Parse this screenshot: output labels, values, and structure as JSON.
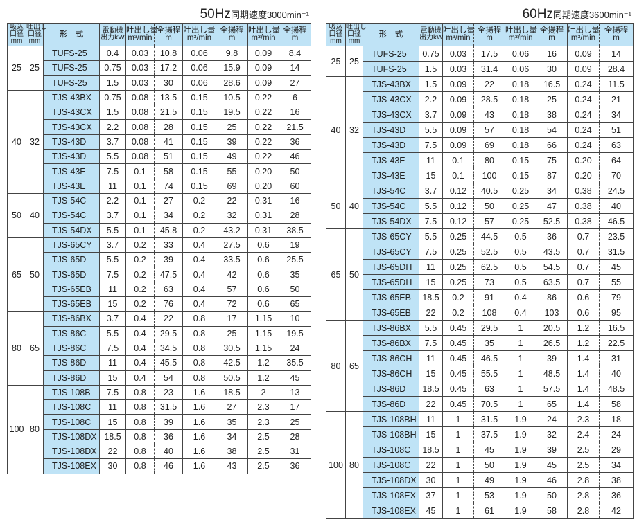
{
  "headers": {
    "suction": [
      "吸込",
      "口径",
      "mm"
    ],
    "discharge": [
      "吐出し",
      "口径",
      "mm"
    ],
    "model": "形　式",
    "motor": [
      "電動機",
      "出力kW"
    ],
    "flow": [
      "吐出し量",
      "m³/min"
    ],
    "head": [
      "全揚程",
      "m"
    ]
  },
  "tables": [
    {
      "hz": "50Hz",
      "speed": "同期速度3000min⁻¹",
      "groups": [
        {
          "suction": "25",
          "discharge": "25",
          "rows": [
            [
              "TUFS-25",
              "0.4",
              "0.03",
              "10.8",
              "0.06",
              "9.8",
              "0.09",
              "8.4"
            ],
            [
              "TUFS-25",
              "0.75",
              "0.03",
              "17.2",
              "0.06",
              "15.9",
              "0.09",
              "14"
            ],
            [
              "TUFS-25",
              "1.5",
              "0.03",
              "30",
              "0.06",
              "28.6",
              "0.09",
              "27"
            ]
          ]
        },
        {
          "suction": "40",
          "discharge": "32",
          "rows": [
            [
              "TJS-43BX",
              "0.75",
              "0.08",
              "13.5",
              "0.15",
              "10.5",
              "0.22",
              "6"
            ],
            [
              "TJS-43CX",
              "1.5",
              "0.08",
              "21.5",
              "0.15",
              "19.5",
              "0.22",
              "16"
            ],
            [
              "TJS-43CX",
              "2.2",
              "0.08",
              "28",
              "0.15",
              "25",
              "0.22",
              "21.5"
            ],
            [
              "TJS-43D",
              "3.7",
              "0.08",
              "41",
              "0.15",
              "39",
              "0.22",
              "36"
            ],
            [
              "TJS-43D",
              "5.5",
              "0.08",
              "51",
              "0.15",
              "49",
              "0.22",
              "46"
            ],
            [
              "TJS-43E",
              "7.5",
              "0.1",
              "58",
              "0.15",
              "55",
              "0.20",
              "50"
            ],
            [
              "TJS-43E",
              "11",
              "0.1",
              "74",
              "0.15",
              "69",
              "0.20",
              "60"
            ]
          ]
        },
        {
          "suction": "50",
          "discharge": "40",
          "rows": [
            [
              "TJS-54C",
              "2.2",
              "0.1",
              "27",
              "0.2",
              "22",
              "0.31",
              "16"
            ],
            [
              "TJS-54C",
              "3.7",
              "0.1",
              "34",
              "0.2",
              "32",
              "0.31",
              "28"
            ],
            [
              "TJS-54DX",
              "5.5",
              "0.1",
              "45.8",
              "0.2",
              "43.2",
              "0.31",
              "38.5"
            ]
          ]
        },
        {
          "suction": "65",
          "discharge": "50",
          "rows": [
            [
              "TJS-65CY",
              "3.7",
              "0.2",
              "33",
              "0.4",
              "27.5",
              "0.6",
              "19"
            ],
            [
              "TJS-65D",
              "5.5",
              "0.2",
              "39",
              "0.4",
              "33.5",
              "0.6",
              "25.5"
            ],
            [
              "TJS-65D",
              "7.5",
              "0.2",
              "47.5",
              "0.4",
              "42",
              "0.6",
              "35"
            ],
            [
              "TJS-65EB",
              "11",
              "0.2",
              "63",
              "0.4",
              "57",
              "0.6",
              "50"
            ],
            [
              "TJS-65EB",
              "15",
              "0.2",
              "76",
              "0.4",
              "72",
              "0.6",
              "65"
            ]
          ]
        },
        {
          "suction": "80",
          "discharge": "65",
          "rows": [
            [
              "TJS-86BX",
              "3.7",
              "0.4",
              "22",
              "0.8",
              "17",
              "1.15",
              "10"
            ],
            [
              "TJS-86C",
              "5.5",
              "0.4",
              "29.5",
              "0.8",
              "25",
              "1.15",
              "19.5"
            ],
            [
              "TJS-86C",
              "7.5",
              "0.4",
              "34.5",
              "0.8",
              "30.5",
              "1.15",
              "24"
            ],
            [
              "TJS-86D",
              "11",
              "0.4",
              "45.5",
              "0.8",
              "42.5",
              "1.2",
              "35.5"
            ],
            [
              "TJS-86D",
              "15",
              "0.4",
              "54",
              "0.8",
              "50.5",
              "1.2",
              "45"
            ]
          ]
        },
        {
          "suction": "100",
          "discharge": "80",
          "rows": [
            [
              "TJS-108B",
              "7.5",
              "0.8",
              "23",
              "1.6",
              "18.5",
              "2",
              "13"
            ],
            [
              "TJS-108C",
              "11",
              "0.8",
              "31.5",
              "1.6",
              "27",
              "2.3",
              "17"
            ],
            [
              "TJS-108C",
              "15",
              "0.8",
              "39",
              "1.6",
              "35",
              "2.3",
              "25"
            ],
            [
              "TJS-108DX",
              "18.5",
              "0.8",
              "36",
              "1.6",
              "34",
              "2.5",
              "28"
            ],
            [
              "TJS-108DX",
              "22",
              "0.8",
              "40",
              "1.6",
              "38",
              "2.5",
              "31"
            ],
            [
              "TJS-108EX",
              "30",
              "0.8",
              "46",
              "1.6",
              "43",
              "2.5",
              "36"
            ]
          ]
        }
      ]
    },
    {
      "hz": "60Hz",
      "speed": "同期速度3600min⁻¹",
      "groups": [
        {
          "suction": "25",
          "discharge": "25",
          "rows": [
            [
              "TUFS-25",
              "0.75",
              "0.03",
              "17.5",
              "0.06",
              "16",
              "0.09",
              "14"
            ],
            [
              "TUFS-25",
              "1.5",
              "0.03",
              "31.4",
              "0.06",
              "30",
              "0.09",
              "28.4"
            ]
          ]
        },
        {
          "suction": "40",
          "discharge": "32",
          "rows": [
            [
              "TJS-43BX",
              "1.5",
              "0.09",
              "22",
              "0.18",
              "16.5",
              "0.24",
              "11.5"
            ],
            [
              "TJS-43CX",
              "2.2",
              "0.09",
              "28.5",
              "0.18",
              "25",
              "0.24",
              "21"
            ],
            [
              "TJS-43CX",
              "3.7",
              "0.09",
              "43",
              "0.18",
              "38",
              "0.24",
              "34"
            ],
            [
              "TJS-43D",
              "5.5",
              "0.09",
              "57",
              "0.18",
              "54",
              "0.24",
              "51"
            ],
            [
              "TJS-43D",
              "7.5",
              "0.09",
              "69",
              "0.18",
              "66",
              "0.24",
              "63"
            ],
            [
              "TJS-43E",
              "11",
              "0.1",
              "80",
              "0.15",
              "75",
              "0.20",
              "64"
            ],
            [
              "TJS-43E",
              "15",
              "0.1",
              "100",
              "0.15",
              "87",
              "0.20",
              "70"
            ]
          ]
        },
        {
          "suction": "50",
          "discharge": "40",
          "rows": [
            [
              "TJS-54C",
              "3.7",
              "0.12",
              "40.5",
              "0.25",
              "34",
              "0.38",
              "24.5"
            ],
            [
              "TJS-54C",
              "5.5",
              "0.12",
              "50",
              "0.25",
              "47",
              "0.38",
              "40"
            ],
            [
              "TJS-54DX",
              "7.5",
              "0.12",
              "57",
              "0.25",
              "52.5",
              "0.38",
              "46.5"
            ]
          ]
        },
        {
          "suction": "65",
          "discharge": "50",
          "rows": [
            [
              "TJS-65CY",
              "5.5",
              "0.25",
              "44.5",
              "0.5",
              "36",
              "0.7",
              "23.5"
            ],
            [
              "TJS-65CY",
              "7.5",
              "0.25",
              "52.5",
              "0.5",
              "43.5",
              "0.7",
              "31.5"
            ],
            [
              "TJS-65DH",
              "11",
              "0.25",
              "62.5",
              "0.5",
              "54.5",
              "0.7",
              "45"
            ],
            [
              "TJS-65DH",
              "15",
              "0.25",
              "73",
              "0.5",
              "63.5",
              "0.7",
              "55"
            ],
            [
              "TJS-65EB",
              "18.5",
              "0.2",
              "91",
              "0.4",
              "86",
              "0.6",
              "79"
            ],
            [
              "TJS-65EB",
              "22",
              "0.2",
              "108",
              "0.4",
              "103",
              "0.6",
              "95"
            ]
          ]
        },
        {
          "suction": "80",
          "discharge": "65",
          "rows": [
            [
              "TJS-86BX",
              "5.5",
              "0.45",
              "29.5",
              "1",
              "20.5",
              "1.2",
              "16.5"
            ],
            [
              "TJS-86BX",
              "7.5",
              "0.45",
              "35",
              "1",
              "26.5",
              "1.2",
              "22.5"
            ],
            [
              "TJS-86CH",
              "11",
              "0.45",
              "46.5",
              "1",
              "39",
              "1.4",
              "31"
            ],
            [
              "TJS-86CH",
              "15",
              "0.45",
              "55.5",
              "1",
              "48.5",
              "1.4",
              "40"
            ],
            [
              "TJS-86D",
              "18.5",
              "0.45",
              "63",
              "1",
              "57.5",
              "1.4",
              "48.5"
            ],
            [
              "TJS-86D",
              "22",
              "0.45",
              "70.5",
              "1",
              "65",
              "1.4",
              "58"
            ]
          ]
        },
        {
          "suction": "100",
          "discharge": "80",
          "rows": [
            [
              "TJS-108BH",
              "11",
              "1",
              "31.5",
              "1.9",
              "24",
              "2.3",
              "18"
            ],
            [
              "TJS-108BH",
              "15",
              "1",
              "37.5",
              "1.9",
              "32",
              "2.4",
              "24"
            ],
            [
              "TJS-108C",
              "18.5",
              "1",
              "45",
              "1.9",
              "39",
              "2.5",
              "29"
            ],
            [
              "TJS-108C",
              "22",
              "1",
              "50",
              "1.9",
              "45",
              "2.5",
              "34"
            ],
            [
              "TJS-108DX",
              "30",
              "1",
              "49",
              "1.9",
              "46",
              "2.8",
              "38"
            ],
            [
              "TJS-108EX",
              "37",
              "1",
              "53",
              "1.9",
              "50",
              "2.8",
              "36"
            ],
            [
              "TJS-108EX",
              "45",
              "1",
              "61",
              "1.9",
              "58",
              "2.8",
              "42"
            ]
          ]
        }
      ]
    }
  ]
}
